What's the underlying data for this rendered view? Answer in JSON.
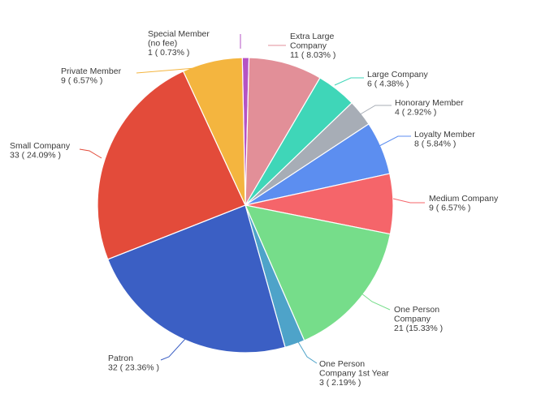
{
  "chart_data": {
    "type": "pie",
    "title": "",
    "legend": "none",
    "slices": [
      {
        "lines": [
          "Special Member",
          "(no fee)",
          "1 ( 0.73% )"
        ],
        "value": 1,
        "color": "#b553c4"
      },
      {
        "lines": [
          "Extra Large",
          "Company",
          "11 ( 8.03% )"
        ],
        "value": 11,
        "color": "#e28f98"
      },
      {
        "lines": [
          "Large Company",
          "6 ( 4.38% )"
        ],
        "value": 6,
        "color": "#3fd6b8"
      },
      {
        "lines": [
          "Honorary Member",
          "4 ( 2.92% )"
        ],
        "value": 4,
        "color": "#a7adb6"
      },
      {
        "lines": [
          "Loyalty Member",
          "8 ( 5.84% )"
        ],
        "value": 8,
        "color": "#5c8ef0"
      },
      {
        "lines": [
          "Medium Company",
          "9 ( 6.57% )"
        ],
        "value": 9,
        "color": "#f5656a"
      },
      {
        "lines": [
          "One Person",
          "Company",
          "21 (15.33% )"
        ],
        "value": 21,
        "color": "#76dd8a"
      },
      {
        "lines": [
          "One Person",
          "Company 1st Year",
          "3 ( 2.19% )"
        ],
        "value": 3,
        "color": "#4ea3c9"
      },
      {
        "lines": [
          "Patron",
          "32 ( 23.36% )"
        ],
        "value": 32,
        "color": "#3b5fc4"
      },
      {
        "lines": [
          "Small Company",
          "33 ( 24.09% )"
        ],
        "value": 33,
        "color": "#e34b3a"
      },
      {
        "lines": [
          "Private Member",
          "9 ( 6.57% )"
        ],
        "value": 9,
        "color": "#f4b53f"
      }
    ]
  }
}
